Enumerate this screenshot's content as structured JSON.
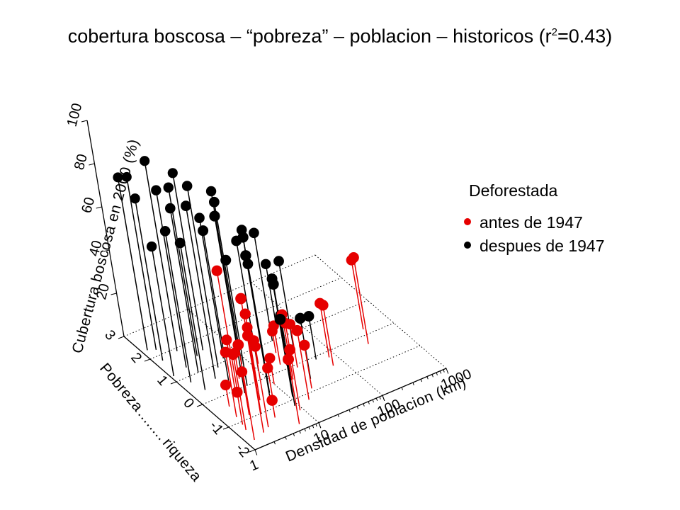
{
  "chart_data": {
    "type": "scatter",
    "title_prefix": "cobertura boscosa – “pobreza” – poblacion – historicos (r",
    "title_sup": "2",
    "title_suffix": "=0.43)",
    "zlabel": "Cubertura boscosa en 2000 (%)",
    "xlabel": "Densidad de poblacion (km)",
    "ylabel_left": "Pobreza",
    "ylabel_dots": "........",
    "ylabel_right": "riqueza",
    "x_scale": "log",
    "xlim": [
      1,
      1000
    ],
    "ylim": [
      -2,
      3
    ],
    "zlim": [
      0,
      100
    ],
    "x_ticks": [
      "1",
      "10",
      "100",
      "1000"
    ],
    "y_ticks": [
      "-2",
      "-1",
      "0",
      "1",
      "2",
      "3"
    ],
    "z_ticks": [
      "20",
      "40",
      "60",
      "80",
      "100"
    ],
    "grid": true,
    "legend_placement": "right",
    "legend_title": "Deforestada",
    "series": [
      {
        "name": "antes de 1947",
        "color": "#e60000",
        "points": [
          {
            "x": 1.3,
            "y": -1.7,
            "z": 44
          },
          {
            "x": 1.4,
            "y": -1.3,
            "z": 35
          },
          {
            "x": 1.6,
            "y": -0.8,
            "z": 30
          },
          {
            "x": 1.5,
            "y": -1.1,
            "z": 15
          },
          {
            "x": 1.8,
            "y": -0.4,
            "z": 10
          },
          {
            "x": 2.0,
            "y": -1.6,
            "z": 62
          },
          {
            "x": 2.3,
            "y": -0.9,
            "z": 20
          },
          {
            "x": 2.6,
            "y": -1.5,
            "z": 40
          },
          {
            "x": 3.0,
            "y": -0.2,
            "z": 58
          },
          {
            "x": 3.2,
            "y": -1.0,
            "z": 36
          },
          {
            "x": 3.5,
            "y": 0.1,
            "z": 22
          },
          {
            "x": 4.0,
            "y": -1.3,
            "z": 8
          },
          {
            "x": 4.5,
            "y": -0.6,
            "z": 40
          },
          {
            "x": 5.0,
            "y": 0.3,
            "z": 12
          },
          {
            "x": 6.0,
            "y": -1.8,
            "z": 30
          },
          {
            "x": 6.5,
            "y": -0.7,
            "z": 14
          },
          {
            "x": 7.0,
            "y": 0.0,
            "z": 25
          },
          {
            "x": 9.0,
            "y": -1.4,
            "z": 28
          },
          {
            "x": 10.0,
            "y": -0.3,
            "z": 12
          },
          {
            "x": 12.0,
            "y": 0.5,
            "z": 8
          },
          {
            "x": 15.0,
            "y": -1.2,
            "z": 32
          },
          {
            "x": 18.0,
            "y": -0.4,
            "z": 30
          },
          {
            "x": 20.0,
            "y": 0.2,
            "z": 18
          },
          {
            "x": 22.0,
            "y": -0.9,
            "z": 20
          },
          {
            "x": 25.0,
            "y": 0.6,
            "z": 10
          },
          {
            "x": 28.0,
            "y": -0.1,
            "z": 20
          },
          {
            "x": 35.0,
            "y": 0.4,
            "z": 14
          },
          {
            "x": 70.0,
            "y": -0.5,
            "z": 28
          },
          {
            "x": 80.0,
            "y": -0.2,
            "z": 25
          },
          {
            "x": 300.0,
            "y": -0.3,
            "z": 40
          },
          {
            "x": 400.0,
            "y": 0.2,
            "z": 32
          }
        ]
      },
      {
        "name": "despues de 1947",
        "color": "#000000",
        "points": [
          {
            "x": 1.2,
            "y": 2.3,
            "z": 80
          },
          {
            "x": 1.5,
            "y": 2.2,
            "z": 80
          },
          {
            "x": 1.3,
            "y": 1.8,
            "z": 75
          },
          {
            "x": 1.1,
            "y": 1.2,
            "z": 60
          },
          {
            "x": 1.4,
            "y": 0.8,
            "z": 70
          },
          {
            "x": 1.6,
            "y": 0.4,
            "z": 68
          },
          {
            "x": 1.9,
            "y": 1.3,
            "z": 82
          },
          {
            "x": 2.2,
            "y": 1.0,
            "z": 76
          },
          {
            "x": 2.4,
            "y": 1.9,
            "z": 88
          },
          {
            "x": 2.8,
            "y": 0.6,
            "z": 80
          },
          {
            "x": 3.2,
            "y": 0.2,
            "z": 72
          },
          {
            "x": 3.4,
            "y": 1.5,
            "z": 78
          },
          {
            "x": 3.8,
            "y": -0.2,
            "z": 82
          },
          {
            "x": 4.1,
            "y": 0.9,
            "z": 84
          },
          {
            "x": 4.6,
            "y": 1.6,
            "z": 82
          },
          {
            "x": 5.0,
            "y": 0.0,
            "z": 58
          },
          {
            "x": 5.5,
            "y": -0.8,
            "z": 68
          },
          {
            "x": 6.0,
            "y": 1.1,
            "z": 65
          },
          {
            "x": 7.0,
            "y": -0.5,
            "z": 72
          },
          {
            "x": 8.0,
            "y": 0.7,
            "z": 75
          },
          {
            "x": 9.0,
            "y": -1.2,
            "z": 40
          },
          {
            "x": 10.0,
            "y": 0.3,
            "z": 60
          },
          {
            "x": 11.0,
            "y": -0.9,
            "z": 52
          },
          {
            "x": 13.0,
            "y": 1.4,
            "z": 70
          },
          {
            "x": 15.0,
            "y": 0.5,
            "z": 45
          },
          {
            "x": 17.0,
            "y": -0.4,
            "z": 30
          },
          {
            "x": 20.0,
            "y": 0.9,
            "z": 55
          },
          {
            "x": 23.0,
            "y": 0.1,
            "z": 40
          },
          {
            "x": 28.0,
            "y": -0.6,
            "z": 28
          },
          {
            "x": 32.0,
            "y": 1.0,
            "z": 50
          },
          {
            "x": 40.0,
            "y": 0.4,
            "z": 42
          },
          {
            "x": 50.0,
            "y": 1.3,
            "z": 30
          },
          {
            "x": 55.0,
            "y": -0.1,
            "z": 20
          }
        ]
      }
    ]
  }
}
